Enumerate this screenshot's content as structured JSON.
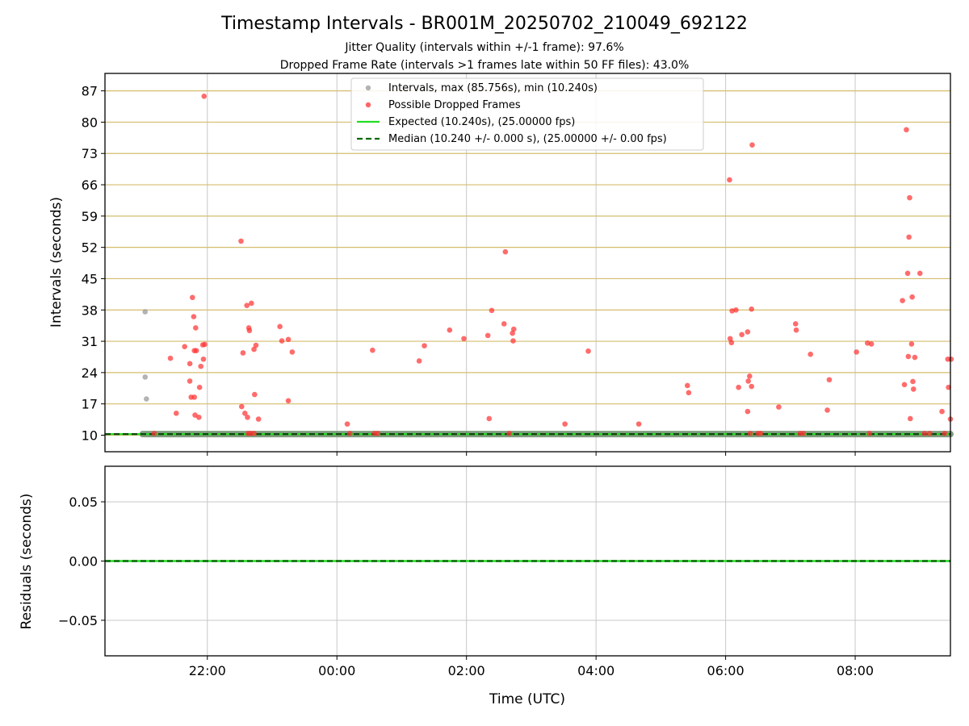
{
  "chart_data": {
    "title": "Timestamp Intervals - BR001M_20250702_210049_692122",
    "subtitle_lines": [
      "Jitter Quality (intervals within +/-1 frame): 97.6%",
      "Dropped Frame Rate (intervals >1 frames late within 50 FF files): 43.0%"
    ],
    "top_panel": {
      "type": "scatter",
      "ylabel": "Intervals (seconds)",
      "ylim": [
        6.3,
        90.9
      ],
      "yticks": [
        10,
        17,
        24,
        31,
        38,
        45,
        52,
        59,
        66,
        73,
        80,
        87
      ],
      "ytick_labels": [
        "10",
        "17",
        "24",
        "31",
        "38",
        "45",
        "52",
        "59",
        "66",
        "73",
        "80",
        "87"
      ],
      "horizontal_grid_color": "#d4bd6e",
      "vertical_grid": true,
      "legend_position": "upper-center",
      "legend": [
        {
          "label": "Intervals, max (85.756s), min (10.240s)",
          "kind": "marker",
          "color": "#9a9a9a"
        },
        {
          "label": "Possible Dropped Frames",
          "kind": "marker",
          "color": "#ff3333"
        },
        {
          "label": "Expected (10.240s), (25.00000 fps)",
          "kind": "solid-line",
          "color": "#22dd22"
        },
        {
          "label": "Median (10.240 +/- 0.000 s), (25.00000 +/- 0.00 fps)",
          "kind": "dashed-line",
          "color": "#0a6a0a"
        }
      ],
      "expected_value": 10.24,
      "median_value": 10.24,
      "baseline_start_hour": 21.0,
      "gray_points": [
        [
          21.04,
          37.6
        ],
        [
          21.04,
          23.0
        ],
        [
          21.06,
          18.1
        ]
      ],
      "red_points": [
        [
          21.95,
          85.8
        ],
        [
          21.43,
          27.2
        ],
        [
          21.52,
          14.9
        ],
        [
          21.65,
          29.8
        ],
        [
          21.73,
          22.1
        ],
        [
          21.73,
          26.0
        ],
        [
          21.75,
          18.5
        ],
        [
          21.77,
          40.8
        ],
        [
          21.79,
          36.5
        ],
        [
          21.8,
          18.5
        ],
        [
          21.8,
          28.9
        ],
        [
          21.81,
          14.5
        ],
        [
          21.82,
          34.0
        ],
        [
          21.83,
          28.9
        ],
        [
          21.87,
          14.0
        ],
        [
          21.88,
          20.7
        ],
        [
          21.9,
          25.4
        ],
        [
          21.93,
          30.2
        ],
        [
          21.94,
          27.0
        ],
        [
          21.96,
          30.3
        ],
        [
          21.18,
          10.4
        ],
        [
          22.52,
          53.4
        ],
        [
          22.53,
          16.4
        ],
        [
          22.55,
          28.4
        ],
        [
          22.58,
          14.9
        ],
        [
          22.61,
          39.0
        ],
        [
          22.62,
          14.0
        ],
        [
          22.64,
          34.0
        ],
        [
          22.65,
          33.4
        ],
        [
          22.68,
          39.5
        ],
        [
          22.72,
          29.2
        ],
        [
          22.73,
          19.1
        ],
        [
          22.75,
          30.1
        ],
        [
          22.79,
          13.6
        ],
        [
          22.63,
          10.4
        ],
        [
          22.67,
          10.4
        ],
        [
          22.72,
          10.4
        ],
        [
          23.12,
          34.3
        ],
        [
          23.15,
          31.1
        ],
        [
          23.25,
          31.4
        ],
        [
          23.25,
          17.7
        ],
        [
          23.31,
          28.6
        ],
        [
          24.16,
          12.5
        ],
        [
          24.2,
          10.4
        ],
        [
          24.55,
          29.0
        ],
        [
          24.58,
          10.4
        ],
        [
          24.63,
          10.4
        ],
        [
          25.27,
          26.6
        ],
        [
          25.35,
          30.0
        ],
        [
          25.74,
          33.5
        ],
        [
          25.96,
          31.6
        ],
        [
          26.33,
          32.3
        ],
        [
          26.35,
          13.7
        ],
        [
          26.39,
          37.9
        ],
        [
          26.58,
          34.9
        ],
        [
          26.6,
          51.0
        ],
        [
          26.66,
          10.4
        ],
        [
          26.71,
          32.8
        ],
        [
          26.72,
          31.1
        ],
        [
          26.73,
          33.7
        ],
        [
          27.52,
          12.5
        ],
        [
          27.88,
          28.8
        ],
        [
          28.66,
          12.5
        ],
        [
          29.41,
          21.1
        ],
        [
          29.43,
          19.5
        ],
        [
          30.06,
          67.1
        ],
        [
          30.07,
          31.6
        ],
        [
          30.09,
          30.7
        ],
        [
          30.1,
          37.8
        ],
        [
          30.16,
          38.0
        ],
        [
          30.2,
          20.7
        ],
        [
          30.25,
          32.5
        ],
        [
          30.34,
          15.3
        ],
        [
          30.34,
          33.1
        ],
        [
          30.35,
          22.1
        ],
        [
          30.37,
          23.2
        ],
        [
          30.38,
          10.4
        ],
        [
          30.4,
          38.2
        ],
        [
          30.4,
          20.9
        ],
        [
          30.41,
          74.9
        ],
        [
          30.5,
          10.4
        ],
        [
          30.54,
          10.4
        ],
        [
          30.82,
          16.3
        ],
        [
          31.08,
          34.9
        ],
        [
          31.09,
          33.5
        ],
        [
          31.15,
          10.4
        ],
        [
          31.2,
          10.4
        ],
        [
          31.31,
          28.1
        ],
        [
          31.57,
          15.6
        ],
        [
          31.6,
          22.4
        ],
        [
          32.02,
          28.6
        ],
        [
          32.19,
          30.6
        ],
        [
          32.22,
          10.4
        ],
        [
          32.25,
          30.4
        ],
        [
          32.73,
          40.1
        ],
        [
          32.76,
          21.3
        ],
        [
          32.79,
          78.3
        ],
        [
          32.81,
          46.2
        ],
        [
          32.82,
          27.6
        ],
        [
          32.83,
          54.3
        ],
        [
          32.84,
          63.1
        ],
        [
          32.85,
          13.7
        ],
        [
          32.87,
          30.4
        ],
        [
          32.88,
          40.9
        ],
        [
          32.89,
          22.0
        ],
        [
          32.9,
          20.3
        ],
        [
          32.92,
          27.4
        ],
        [
          33.0,
          46.2
        ],
        [
          33.07,
          10.4
        ],
        [
          33.15,
          10.4
        ],
        [
          33.34,
          15.3
        ],
        [
          33.38,
          10.4
        ],
        [
          33.43,
          27.0
        ],
        [
          33.44,
          20.7
        ],
        [
          33.47,
          13.6
        ],
        [
          33.48,
          27.0
        ]
      ]
    },
    "bottom_panel": {
      "type": "line",
      "ylabel": "Residuals (seconds)",
      "ylim": [
        -0.08,
        0.08
      ],
      "yticks": [
        0.05,
        0.0,
        -0.05
      ],
      "ytick_labels": [
        "0.05",
        "0.00",
        "−0.05"
      ],
      "baseline_value": 0.0,
      "grid": true
    },
    "x_axis": {
      "xlabel": "Time (UTC)",
      "unit": "hours from 00:00 on 2025-07-02",
      "xlim": [
        20.42,
        33.47
      ],
      "xticks": [
        22,
        24,
        26,
        28,
        30,
        32
      ],
      "xtick_labels": [
        "22:00",
        "00:00",
        "02:00",
        "04:00",
        "06:00",
        "08:00"
      ]
    }
  }
}
